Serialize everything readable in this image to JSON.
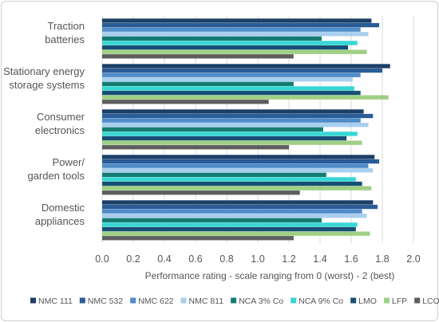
{
  "chart_data": {
    "type": "bar",
    "orientation": "horizontal",
    "categories": [
      [
        "Traction",
        "batteries"
      ],
      [
        "Stationary energy",
        "storage systems"
      ],
      [
        "Consumer",
        "electronics"
      ],
      [
        "Power/",
        "garden tools"
      ],
      [
        "Domestic",
        "appliances"
      ]
    ],
    "series": [
      {
        "name": "NMC 111",
        "color": "#1b3f66",
        "values": [
          1.73,
          1.85,
          1.68,
          1.75,
          1.74
        ]
      },
      {
        "name": "NMC 532",
        "color": "#2a5c96",
        "values": [
          1.78,
          1.8,
          1.74,
          1.78,
          1.77
        ]
      },
      {
        "name": "NMC 622",
        "color": "#4f8cc9",
        "values": [
          1.66,
          1.66,
          1.66,
          1.71,
          1.67
        ]
      },
      {
        "name": "NMC 811",
        "color": "#a9cfee",
        "values": [
          1.71,
          1.61,
          1.71,
          1.74,
          1.7
        ]
      },
      {
        "name": "NCA 3% Co",
        "color": "#157c72",
        "values": [
          1.41,
          1.23,
          1.42,
          1.44,
          1.41
        ]
      },
      {
        "name": "NCA 9% Co",
        "color": "#36d7d3",
        "values": [
          1.64,
          1.62,
          1.64,
          1.63,
          1.64
        ]
      },
      {
        "name": "LMO",
        "color": "#174f74",
        "values": [
          1.58,
          1.66,
          1.57,
          1.67,
          1.63
        ]
      },
      {
        "name": "LFP",
        "color": "#9fcf84",
        "values": [
          1.7,
          1.84,
          1.67,
          1.73,
          1.72
        ]
      },
      {
        "name": "LCO",
        "color": "#5e5e5e",
        "values": [
          1.23,
          1.07,
          1.2,
          1.27,
          1.23
        ]
      }
    ],
    "xlim": [
      0,
      2.0
    ],
    "xticks": [
      "0.0",
      "0.2",
      "0.4",
      "0.6",
      "0.8",
      "1.0",
      "1.2",
      "1.4",
      "1.6",
      "1.8",
      "2.0"
    ],
    "xlabel": "Performance rating - scale ranging from 0 (worst) - 2 (best)",
    "grid": true,
    "legend_position": "bottom"
  }
}
